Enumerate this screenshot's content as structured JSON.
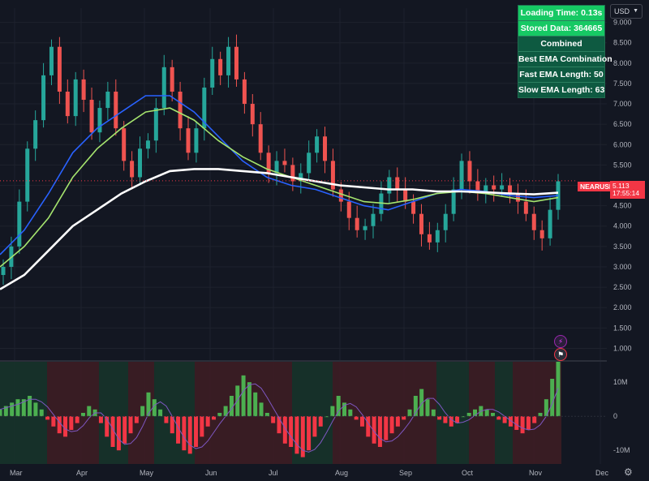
{
  "chart_data": {
    "type": "candlestick",
    "symbol": "NEARUSD",
    "currency": "USD",
    "price_label": "5.113",
    "countdown": "17:55:14",
    "x_ticks": [
      "Mar",
      "Apr",
      "May",
      "Jun",
      "Jul",
      "Aug",
      "Sep",
      "Oct",
      "Nov",
      "Dec"
    ],
    "y_ticks": [
      "1.000",
      "1.500",
      "2.000",
      "2.500",
      "3.000",
      "3.500",
      "4.000",
      "4.500",
      "5.000",
      "5.500",
      "6.000",
      "6.500",
      "7.000",
      "7.500",
      "8.000",
      "8.500",
      "9.000"
    ],
    "ylim": [
      0.75,
      9.35
    ],
    "candles_close_approx": [
      3.0,
      3.5,
      4.6,
      5.9,
      6.6,
      7.7,
      8.4,
      7.3,
      6.7,
      7.6,
      7.1,
      6.3,
      6.9,
      7.3,
      6.4,
      5.6,
      5.2,
      5.9,
      6.1,
      6.9,
      7.9,
      7.3,
      6.4,
      5.8,
      6.4,
      7.4,
      8.1,
      7.7,
      8.4,
      7.6,
      7.0,
      6.5,
      5.8,
      5.3,
      5.6,
      5.5,
      5.1,
      5.3,
      5.8,
      6.2,
      5.6,
      4.9,
      4.6,
      4.2,
      3.9,
      4.0,
      4.3,
      4.8,
      5.2,
      4.9,
      4.6,
      4.3,
      3.8,
      3.6,
      3.9,
      4.3,
      4.9,
      5.6,
      5.1,
      4.8,
      5.0,
      4.9,
      5.0,
      4.8,
      4.6,
      4.3,
      3.9,
      3.7,
      4.4,
      5.1
    ],
    "ema_fast_label": "Fast EMA Length: 50",
    "ema_slow_label": "Slow EMA Length: 63",
    "series": [
      {
        "values": [
          3.3,
          3.9,
          4.8,
          5.8,
          6.4,
          6.8,
          7.2,
          7.2,
          6.8,
          6.2,
          5.6,
          5.2,
          5.0,
          4.9,
          4.7,
          4.5,
          4.4,
          4.6,
          4.8,
          4.9,
          4.85,
          4.75,
          4.7,
          4.75
        ]
      },
      {
        "values": [
          3.0,
          3.5,
          4.2,
          5.2,
          5.9,
          6.4,
          6.8,
          6.9,
          6.6,
          6.1,
          5.7,
          5.4,
          5.2,
          5.0,
          4.8,
          4.6,
          4.55,
          4.65,
          4.8,
          4.85,
          4.8,
          4.7,
          4.6,
          4.7
        ]
      },
      {
        "values": [
          2.45,
          2.8,
          3.4,
          4.0,
          4.4,
          4.8,
          5.1,
          5.35,
          5.4,
          5.4,
          5.35,
          5.3,
          5.2,
          5.1,
          5.0,
          4.95,
          4.9,
          4.9,
          4.85,
          4.85,
          4.83,
          4.8,
          4.78,
          4.82
        ]
      }
    ],
    "indicator": {
      "y_ticks": [
        "10M",
        "0",
        "-10M"
      ],
      "ylim": [
        -14,
        16
      ],
      "histogram": [
        2,
        3,
        4,
        5,
        5,
        6,
        4,
        2,
        -1,
        -3,
        -5,
        -6,
        -4,
        -2,
        1,
        3,
        2,
        -2,
        -6,
        -9,
        -10,
        -8,
        -5,
        -2,
        3,
        7,
        5,
        2,
        -2,
        -5,
        -8,
        -10,
        -11,
        -9,
        -6,
        -3,
        -1,
        1,
        3,
        6,
        9,
        12,
        10,
        7,
        4,
        1,
        -2,
        -5,
        -8,
        -9,
        -11,
        -12,
        -10,
        -6,
        -3,
        0,
        3,
        6,
        4,
        2,
        -1,
        -3,
        -6,
        -8,
        -9,
        -7,
        -5,
        -3,
        -1,
        2,
        6,
        8,
        5,
        2,
        -1,
        -2,
        -3,
        -2,
        0,
        1,
        2,
        3,
        2,
        1,
        -1,
        -2,
        -3,
        -4,
        -5,
        -4,
        -2,
        1,
        5,
        11,
        16
      ]
    }
  },
  "panel": [
    {
      "label": "Loading Time: 0.13s"
    },
    {
      "label": "Stored Data: 364665"
    },
    {
      "label": "Combined"
    },
    {
      "label": "Best EMA Combination"
    },
    {
      "label": "Fast EMA Length: 50"
    },
    {
      "label": "Slow EMA Length: 63"
    }
  ],
  "colors": {
    "up": "#26a69a",
    "down": "#ef5350",
    "ema_fast": "#2962ff",
    "ema_slow": "#a5e46e",
    "ema_long": "#ffffff",
    "hist_up": "#4caf50",
    "hist_down": "#f23645",
    "bg_green": "#17332a",
    "bg_red": "#3d1d24"
  },
  "icons": {
    "currency_caret": "chevron-down-icon",
    "settings": "gear-icon",
    "lightning": "lightning-icon",
    "flag": "us-flag-icon"
  }
}
